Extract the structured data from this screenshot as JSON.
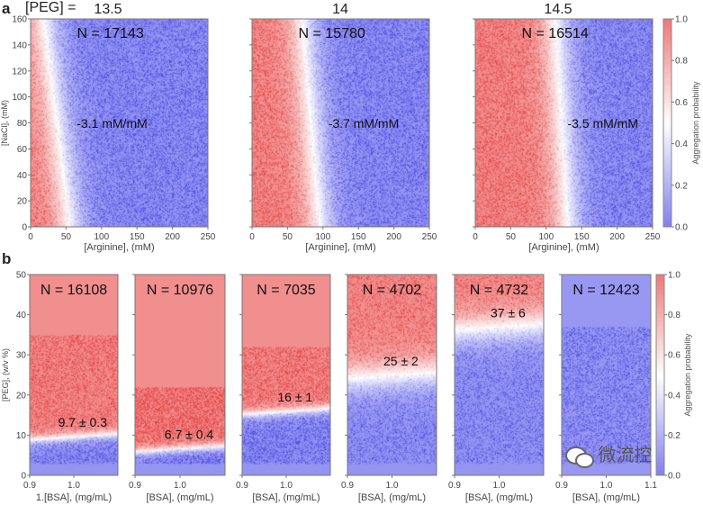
{
  "panel_labels": {
    "a": "a",
    "b": "b"
  },
  "peg_prefix": "[PEG] =",
  "colors": {
    "low": "#3c3ce6",
    "mid": "#ffffff",
    "high": "#e63232"
  },
  "colorbar": {
    "label": "Aggregation probability",
    "range": [
      0,
      1
    ],
    "ticks": [
      "0.0",
      "0.2",
      "0.4",
      "0.6",
      "0.8",
      "1.0"
    ]
  },
  "watermark": {
    "text": "微流控",
    "icon": "wechat-icon"
  },
  "chart_data": [
    {
      "type": "heatmap",
      "panel": "a",
      "title": "13.5",
      "n_label": "N = 17143",
      "annotation": "-3.1 mM/mM",
      "xlabel": "[Arginine], (mM)",
      "ylabel": "[NaCl], (mM)",
      "xlim": [
        0,
        250
      ],
      "ylim": [
        0,
        160
      ],
      "xticks": [
        "0",
        "50",
        "100",
        "150",
        "200",
        "250"
      ],
      "yticks": [
        "0",
        "20",
        "40",
        "60",
        "80",
        "100",
        "120",
        "140",
        "160"
      ],
      "show_ytick_labels": true
    },
    {
      "type": "heatmap",
      "panel": "a",
      "title": "14",
      "n_label": "N = 15780",
      "annotation": "-3.7 mM/mM",
      "xlabel": "[Arginine], (mM)",
      "ylabel": "",
      "xlim": [
        0,
        250
      ],
      "ylim": [
        0,
        160
      ],
      "xticks": [
        "0",
        "50",
        "100",
        "150",
        "200",
        "250"
      ],
      "yticks": [],
      "show_ytick_labels": false
    },
    {
      "type": "heatmap",
      "panel": "a",
      "title": "14.5",
      "n_label": "N = 16514",
      "annotation": "-3.5 mM/mM",
      "xlabel": "[Arginine], (mM)",
      "ylabel": "",
      "xlim": [
        0,
        250
      ],
      "ylim": [
        0,
        160
      ],
      "xticks": [
        "0",
        "50",
        "100",
        "150",
        "200",
        "250"
      ],
      "yticks": [],
      "show_ytick_labels": false
    },
    {
      "type": "heatmap",
      "panel": "b",
      "n_label": "N = 16108",
      "annotation": "9.7 ± 0.3",
      "threshold_peg": 9.7,
      "xlabel": "1.[BSA], (mg/mL)",
      "ylabel": "[PEG], (w/v %)",
      "ylim": [
        0,
        50
      ],
      "xticks": [
        "0.9",
        "1.0"
      ],
      "yticks": [
        "0",
        "10",
        "20",
        "30",
        "40",
        "50"
      ],
      "show_ytick_labels": true
    },
    {
      "type": "heatmap",
      "panel": "b",
      "n_label": "N = 10976",
      "annotation": "6.7 ± 0.4",
      "threshold_peg": 6.7,
      "xlabel": "[BSA], (mg/mL)",
      "ylabel": "",
      "ylim": [
        0,
        50
      ],
      "xticks": [
        "0.9",
        "1.0"
      ],
      "yticks": [],
      "show_ytick_labels": false
    },
    {
      "type": "heatmap",
      "panel": "b",
      "n_label": "N = 7035",
      "annotation": "16 ± 1",
      "threshold_peg": 16,
      "xlabel": "[BSA], (mg/mL)",
      "ylabel": "",
      "ylim": [
        0,
        50
      ],
      "xticks": [
        "0.9",
        "1.0"
      ],
      "yticks": [],
      "show_ytick_labels": false
    },
    {
      "type": "heatmap",
      "panel": "b",
      "n_label": "N = 4702",
      "annotation": "25 ± 2",
      "threshold_peg": 25,
      "xlabel": "[BSA], (mg/mL)",
      "ylabel": "",
      "ylim": [
        0,
        50
      ],
      "xticks": [
        "0.9",
        "1.0"
      ],
      "yticks": [],
      "show_ytick_labels": false
    },
    {
      "type": "heatmap",
      "panel": "b",
      "n_label": "N = 4732",
      "annotation": "37 ± 6",
      "threshold_peg": 37,
      "xlabel": "[BSA], (mg/mL)",
      "ylabel": "",
      "ylim": [
        0,
        50
      ],
      "xticks": [
        "0.9",
        "1.0"
      ],
      "yticks": [],
      "show_ytick_labels": false
    },
    {
      "type": "heatmap",
      "panel": "b",
      "n_label": "N = 12423",
      "annotation": "",
      "xlabel": "[BSA], (mg/mL)",
      "ylabel": "",
      "ylim": [
        0,
        50
      ],
      "xticks": [
        "0.9",
        "1.0",
        "1.1"
      ],
      "yticks": [],
      "show_ytick_labels": false
    }
  ]
}
